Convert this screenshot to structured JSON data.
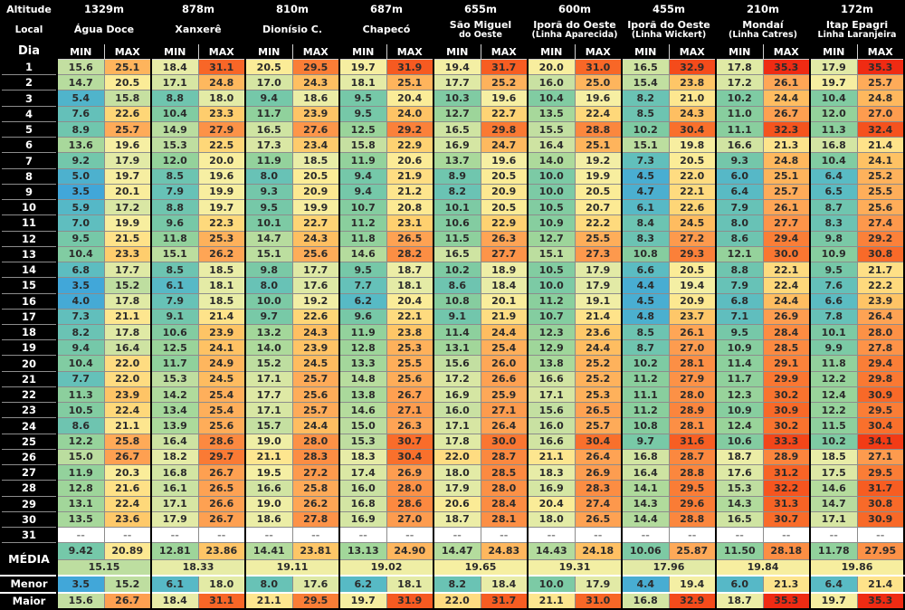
{
  "header": {
    "altitude_label": "Altitude",
    "local_label": "Local",
    "dia_label": "Dia",
    "min_label": "MIN",
    "max_label": "MAX"
  },
  "row_labels": {
    "media": "MÉDIA",
    "menor": "Menor",
    "maior": "Maior",
    "no_data": "--"
  },
  "locations": [
    {
      "altitude": "1329m",
      "line1": "Água Doce",
      "line2": ""
    },
    {
      "altitude": "878m",
      "line1": "Xanxerê",
      "line2": ""
    },
    {
      "altitude": "810m",
      "line1": "Dionísio C.",
      "line2": ""
    },
    {
      "altitude": "687m",
      "line1": "Chapecó",
      "line2": ""
    },
    {
      "altitude": "655m",
      "line1": "São Miguel",
      "line2": "do Oeste"
    },
    {
      "altitude": "600m",
      "line1": "Iporã do Oeste",
      "line2": "(Linha Aparecida)"
    },
    {
      "altitude": "455m",
      "line1": "Iporã do Oeste",
      "line2": "(Linha Wickert)"
    },
    {
      "altitude": "210m",
      "line1": "Mondaí",
      "line2": "(Linha Catres)"
    },
    {
      "altitude": "172m",
      "line1": "Itap Epagri",
      "line2": "Linha Laranjeira"
    }
  ],
  "chart_data": {
    "type": "heatmap",
    "title": "Daily MIN/MAX temperatures by location",
    "value_range": [
      3.5,
      35.3
    ],
    "columns_per_location": [
      "MIN",
      "MAX"
    ],
    "color_scale": {
      "low": "#41A7D9",
      "mid": "#F9EFA2",
      "high": "#EF2B13",
      "no_data_bg": "#FFFFFF"
    },
    "rows": [
      {
        "day": "1",
        "values": [
          "15.6",
          "25.1",
          "18.4",
          "31.1",
          "20.5",
          "29.5",
          "19.7",
          "31.9",
          "19.4",
          "31.7",
          "20.0",
          "31.0",
          "16.5",
          "32.9",
          "17.8",
          "35.3",
          "17.9",
          "35.3"
        ]
      },
      {
        "day": "2",
        "values": [
          "14.7",
          "20.5",
          "17.1",
          "24.8",
          "17.0",
          "24.3",
          "18.1",
          "25.1",
          "17.7",
          "25.2",
          "16.0",
          "25.0",
          "15.4",
          "23.8",
          "17.2",
          "26.1",
          "19.7",
          "25.7"
        ]
      },
      {
        "day": "3",
        "values": [
          "5.4",
          "15.8",
          "8.8",
          "18.0",
          "9.4",
          "18.6",
          "9.5",
          "20.4",
          "10.3",
          "19.6",
          "10.4",
          "19.6",
          "8.2",
          "21.0",
          "10.2",
          "24.4",
          "10.4",
          "24.8"
        ]
      },
      {
        "day": "4",
        "values": [
          "7.6",
          "22.6",
          "10.4",
          "23.3",
          "11.7",
          "23.9",
          "9.5",
          "24.0",
          "12.7",
          "22.7",
          "13.5",
          "22.4",
          "8.5",
          "24.3",
          "11.0",
          "26.7",
          "12.0",
          "27.0"
        ]
      },
      {
        "day": "5",
        "values": [
          "8.9",
          "25.7",
          "14.9",
          "27.9",
          "16.5",
          "27.6",
          "12.5",
          "29.2",
          "16.5",
          "29.8",
          "15.5",
          "28.8",
          "10.2",
          "30.4",
          "11.1",
          "32.3",
          "11.3",
          "32.4"
        ]
      },
      {
        "day": "6",
        "values": [
          "13.6",
          "19.6",
          "15.3",
          "22.5",
          "17.3",
          "23.4",
          "15.8",
          "22.9",
          "16.9",
          "24.7",
          "16.4",
          "25.1",
          "15.1",
          "19.8",
          "16.6",
          "21.3",
          "16.8",
          "21.4"
        ]
      },
      {
        "day": "7",
        "values": [
          "9.2",
          "17.9",
          "12.0",
          "20.0",
          "11.9",
          "18.5",
          "11.9",
          "20.6",
          "13.7",
          "19.6",
          "14.0",
          "19.2",
          "7.3",
          "20.5",
          "9.3",
          "24.8",
          "10.4",
          "24.1"
        ]
      },
      {
        "day": "8",
        "values": [
          "5.0",
          "19.7",
          "8.5",
          "19.6",
          "8.0",
          "20.5",
          "9.4",
          "21.9",
          "8.9",
          "20.5",
          "10.0",
          "19.9",
          "4.5",
          "22.0",
          "6.0",
          "25.1",
          "6.4",
          "25.2"
        ]
      },
      {
        "day": "9",
        "values": [
          "3.5",
          "20.1",
          "7.9",
          "19.9",
          "9.3",
          "20.9",
          "9.4",
          "21.2",
          "8.2",
          "20.9",
          "10.0",
          "20.5",
          "4.7",
          "22.1",
          "6.4",
          "25.7",
          "6.5",
          "25.5"
        ]
      },
      {
        "day": "10",
        "values": [
          "5.9",
          "17.2",
          "8.8",
          "19.7",
          "9.5",
          "19.9",
          "10.7",
          "20.8",
          "10.1",
          "20.5",
          "10.5",
          "20.7",
          "6.1",
          "22.6",
          "7.9",
          "26.1",
          "8.7",
          "25.6"
        ]
      },
      {
        "day": "11",
        "values": [
          "7.0",
          "19.9",
          "9.6",
          "22.3",
          "10.1",
          "22.7",
          "11.2",
          "23.1",
          "10.6",
          "22.9",
          "10.9",
          "22.2",
          "8.4",
          "24.5",
          "8.0",
          "27.7",
          "8.3",
          "27.4"
        ]
      },
      {
        "day": "12",
        "values": [
          "9.5",
          "21.5",
          "11.8",
          "25.3",
          "14.7",
          "24.3",
          "11.8",
          "26.5",
          "11.5",
          "26.3",
          "12.7",
          "25.5",
          "8.3",
          "27.2",
          "8.6",
          "29.4",
          "9.8",
          "29.2"
        ]
      },
      {
        "day": "13",
        "values": [
          "10.4",
          "23.3",
          "15.1",
          "26.2",
          "15.1",
          "25.6",
          "14.6",
          "28.2",
          "16.5",
          "27.7",
          "15.1",
          "27.3",
          "10.8",
          "29.3",
          "12.1",
          "30.0",
          "10.9",
          "30.8"
        ]
      },
      {
        "day": "14",
        "values": [
          "6.8",
          "17.7",
          "8.5",
          "18.5",
          "9.8",
          "17.7",
          "9.5",
          "18.7",
          "10.2",
          "18.9",
          "10.5",
          "17.9",
          "6.6",
          "20.5",
          "8.8",
          "22.1",
          "9.5",
          "21.7"
        ]
      },
      {
        "day": "15",
        "values": [
          "3.5",
          "15.2",
          "6.1",
          "18.1",
          "8.0",
          "17.6",
          "7.7",
          "18.1",
          "8.6",
          "18.4",
          "10.0",
          "17.9",
          "4.4",
          "19.4",
          "7.9",
          "22.4",
          "7.6",
          "22.2"
        ]
      },
      {
        "day": "16",
        "values": [
          "4.0",
          "17.8",
          "7.9",
          "18.5",
          "10.0",
          "19.2",
          "6.2",
          "20.4",
          "10.8",
          "20.1",
          "11.2",
          "19.1",
          "4.5",
          "20.9",
          "6.8",
          "24.4",
          "6.6",
          "23.9"
        ]
      },
      {
        "day": "17",
        "values": [
          "7.3",
          "21.1",
          "9.1",
          "21.4",
          "9.7",
          "22.6",
          "9.6",
          "22.1",
          "9.1",
          "21.9",
          "10.7",
          "21.4",
          "4.8",
          "23.7",
          "7.1",
          "26.9",
          "7.8",
          "26.4"
        ]
      },
      {
        "day": "18",
        "values": [
          "8.2",
          "17.8",
          "10.6",
          "23.9",
          "13.2",
          "24.3",
          "11.9",
          "23.8",
          "11.4",
          "24.4",
          "12.3",
          "23.6",
          "8.5",
          "26.1",
          "9.5",
          "28.4",
          "10.1",
          "28.0"
        ]
      },
      {
        "day": "19",
        "values": [
          "9.4",
          "16.4",
          "12.5",
          "24.1",
          "14.0",
          "23.9",
          "12.8",
          "25.3",
          "13.1",
          "25.4",
          "12.9",
          "24.4",
          "8.7",
          "27.0",
          "10.9",
          "28.5",
          "9.9",
          "27.8"
        ]
      },
      {
        "day": "20",
        "values": [
          "10.4",
          "22.0",
          "11.7",
          "24.9",
          "15.2",
          "24.5",
          "13.3",
          "25.5",
          "15.6",
          "26.0",
          "13.8",
          "25.2",
          "10.2",
          "28.1",
          "11.4",
          "29.1",
          "11.8",
          "29.4"
        ]
      },
      {
        "day": "21",
        "values": [
          "7.7",
          "22.0",
          "15.3",
          "24.5",
          "17.1",
          "25.7",
          "14.8",
          "25.6",
          "17.2",
          "26.6",
          "16.6",
          "25.2",
          "11.2",
          "27.9",
          "11.7",
          "29.9",
          "12.2",
          "29.8"
        ]
      },
      {
        "day": "22",
        "values": [
          "11.3",
          "23.9",
          "14.2",
          "25.4",
          "17.7",
          "25.6",
          "13.8",
          "26.7",
          "16.9",
          "25.9",
          "17.1",
          "25.3",
          "11.1",
          "28.0",
          "12.3",
          "30.2",
          "12.4",
          "30.9"
        ]
      },
      {
        "day": "23",
        "values": [
          "10.5",
          "22.4",
          "13.4",
          "25.4",
          "17.1",
          "25.7",
          "14.6",
          "27.1",
          "16.0",
          "27.1",
          "15.6",
          "26.5",
          "11.2",
          "28.9",
          "10.9",
          "30.9",
          "12.2",
          "29.5"
        ]
      },
      {
        "day": "24",
        "values": [
          "8.6",
          "21.1",
          "13.9",
          "25.6",
          "15.7",
          "24.4",
          "15.0",
          "26.3",
          "17.1",
          "26.4",
          "16.0",
          "25.7",
          "10.8",
          "28.1",
          "12.4",
          "30.2",
          "11.5",
          "30.4"
        ]
      },
      {
        "day": "25",
        "values": [
          "12.2",
          "25.8",
          "16.4",
          "28.6",
          "19.0",
          "28.0",
          "15.3",
          "30.7",
          "17.8",
          "30.0",
          "16.6",
          "30.4",
          "9.7",
          "31.6",
          "10.6",
          "33.3",
          "10.2",
          "34.1"
        ]
      },
      {
        "day": "26",
        "values": [
          "15.0",
          "26.7",
          "18.2",
          "29.7",
          "21.1",
          "28.3",
          "18.3",
          "30.4",
          "22.0",
          "28.7",
          "21.1",
          "26.4",
          "16.8",
          "28.7",
          "18.7",
          "28.9",
          "18.5",
          "27.1"
        ]
      },
      {
        "day": "27",
        "values": [
          "11.9",
          "20.3",
          "16.8",
          "26.7",
          "19.5",
          "27.2",
          "17.4",
          "26.9",
          "18.0",
          "28.5",
          "18.3",
          "26.9",
          "16.4",
          "28.8",
          "17.6",
          "31.2",
          "17.5",
          "29.5"
        ]
      },
      {
        "day": "28",
        "values": [
          "12.8",
          "21.6",
          "16.1",
          "26.5",
          "16.6",
          "25.8",
          "16.0",
          "28.0",
          "17.9",
          "28.0",
          "16.9",
          "28.3",
          "14.1",
          "29.5",
          "15.3",
          "32.2",
          "14.6",
          "31.7"
        ]
      },
      {
        "day": "29",
        "values": [
          "13.1",
          "22.4",
          "17.1",
          "26.6",
          "19.0",
          "26.2",
          "16.8",
          "28.6",
          "20.6",
          "28.4",
          "20.4",
          "27.4",
          "14.3",
          "29.6",
          "14.3",
          "31.3",
          "14.7",
          "30.8"
        ]
      },
      {
        "day": "30",
        "values": [
          "13.5",
          "23.6",
          "17.9",
          "26.7",
          "18.6",
          "27.8",
          "16.9",
          "27.0",
          "18.7",
          "28.1",
          "18.0",
          "26.5",
          "14.4",
          "28.8",
          "16.5",
          "30.7",
          "17.1",
          "30.9"
        ]
      },
      {
        "day": "31",
        "values": [
          "--",
          "--",
          "--",
          "--",
          "--",
          "--",
          "--",
          "--",
          "--",
          "--",
          "--",
          "--",
          "--",
          "--",
          "--",
          "--",
          "--",
          "--"
        ]
      }
    ],
    "media_min_max": [
      "9.42",
      "20.89",
      "12.81",
      "23.86",
      "14.41",
      "23.81",
      "13.13",
      "24.90",
      "14.47",
      "24.83",
      "14.43",
      "24.18",
      "10.06",
      "25.87",
      "11.50",
      "28.18",
      "11.78",
      "27.95"
    ],
    "media_overall": [
      "15.15",
      "18.33",
      "19.11",
      "19.02",
      "19.65",
      "19.31",
      "17.96",
      "19.84",
      "19.86"
    ],
    "menor": [
      "3.5",
      "15.2",
      "6.1",
      "18.0",
      "8.0",
      "17.6",
      "6.2",
      "18.1",
      "8.2",
      "18.4",
      "10.0",
      "17.9",
      "4.4",
      "19.4",
      "6.0",
      "21.3",
      "6.4",
      "21.4"
    ],
    "maior": [
      "15.6",
      "26.7",
      "18.4",
      "31.1",
      "21.1",
      "29.5",
      "19.7",
      "31.9",
      "22.0",
      "31.7",
      "21.1",
      "31.0",
      "16.8",
      "32.9",
      "18.7",
      "35.3",
      "19.7",
      "35.3"
    ]
  }
}
